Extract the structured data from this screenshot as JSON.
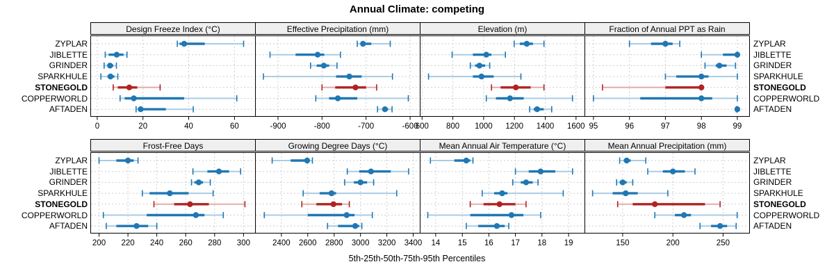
{
  "title": "Annual Climate: competing",
  "caption": "5th-25th-50th-75th-95th Percentiles",
  "sites": [
    "ZYPLAR",
    "JIBLETTE",
    "GRINDER",
    "SPARKHULE",
    "STONEGOLD",
    "COPPERWORLD",
    "AFTADEN"
  ],
  "highlight_site": "STONEGOLD",
  "percentile_labels": [
    "5th",
    "25th",
    "50th",
    "75th",
    "95th"
  ],
  "colors": {
    "series": "#1f77b4",
    "series_light": "#a9cce3",
    "highlight": "#b22222",
    "highlight_light": "#e2abab",
    "strip_bg": "#efefef",
    "grid": "#cdcdcd",
    "border": "#000000"
  },
  "chart_data": {
    "type": "dot-interval-lattice",
    "layout": {
      "rows": 2,
      "cols": 4
    },
    "percentiles": [
      5,
      25,
      50,
      75,
      95
    ],
    "panels": [
      {
        "title": "Design Freeze Index (°C)",
        "ticks": [
          0,
          20,
          40,
          60
        ],
        "xlim": [
          -3,
          69
        ],
        "series": {
          "ZYPLAR": [
            35,
            36,
            38,
            47,
            64
          ],
          "JIBLETTE": [
            3.5,
            5,
            8.5,
            11.5,
            13
          ],
          "GRINDER": [
            3,
            4.5,
            5.6,
            7,
            8.4
          ],
          "SPARKHULE": [
            1.6,
            4.5,
            5.8,
            7.5,
            9
          ],
          "STONEGOLD": [
            7,
            9,
            14,
            17.5,
            27.5
          ],
          "COPPERWORLD": [
            10,
            12,
            16,
            38,
            61
          ],
          "AFTADEN": [
            17,
            18,
            19,
            30,
            42
          ]
        }
      },
      {
        "title": "Effective Precipitation (mm)",
        "ticks": [
          -900,
          -800,
          -700,
          -600
        ],
        "xlim": [
          -952,
          -578
        ],
        "series": {
          "ZYPLAR": [
            -720,
            -712,
            -707,
            -688,
            -645
          ],
          "JIBLETTE": [
            -918,
            -860,
            -810,
            -795,
            -758
          ],
          "GRINDER": [
            -826,
            -812,
            -796,
            -784,
            -766
          ],
          "SPARKHULE": [
            -933,
            -768,
            -738,
            -710,
            -640
          ],
          "STONEGOLD": [
            -800,
            -770,
            -724,
            -700,
            -676
          ],
          "COPPERWORLD": [
            -814,
            -784,
            -764,
            -720,
            -604
          ],
          "AFTADEN": [
            -674,
            -663,
            -657,
            -650,
            -641
          ]
        }
      },
      {
        "title": "Elevation (m)",
        "ticks": [
          600,
          800,
          1000,
          1200,
          1400,
          1600
        ],
        "xlim": [
          585,
          1655
        ],
        "series": {
          "ZYPLAR": [
            1198,
            1235,
            1280,
            1320,
            1392
          ],
          "JIBLETTE": [
            795,
            930,
            1017,
            1050,
            1141
          ],
          "GRINDER": [
            913,
            945,
            973,
            1010,
            1039
          ],
          "SPARKHULE": [
            642,
            930,
            986,
            1065,
            1242
          ],
          "STONEGOLD": [
            1051,
            1110,
            1209,
            1305,
            1392
          ],
          "COPPERWORLD": [
            1017,
            1080,
            1171,
            1260,
            1577
          ],
          "AFTADEN": [
            1299,
            1325,
            1347,
            1390,
            1442
          ]
        }
      },
      {
        "title": "Fraction of Annual PPT as Rain",
        "ticks": [
          95,
          96,
          97,
          98,
          99
        ],
        "xlim": [
          94.75,
          99.33
        ],
        "series": {
          "ZYPLAR": [
            96,
            96.6,
            97,
            97.2,
            97.4
          ],
          "JIBLETTE": [
            98,
            98.6,
            99,
            99,
            99
          ],
          "GRINDER": [
            98.1,
            98.4,
            98.5,
            98.7,
            98.95
          ],
          "SPARKHULE": [
            97,
            97.3,
            98,
            98.2,
            99
          ],
          "STONEGOLD": [
            95.25,
            97,
            98,
            98,
            98
          ],
          "COPPERWORLD": [
            95,
            96.3,
            98,
            98.3,
            99
          ],
          "AFTADEN": [
            98.97,
            99,
            99,
            99,
            99
          ]
        }
      },
      {
        "title": "Frost-Free Days",
        "ticks": [
          200,
          220,
          240,
          260,
          280,
          300
        ],
        "xlim": [
          194,
          308
        ],
        "series": {
          "ZYPLAR": [
            200,
            212,
            220,
            224,
            227
          ],
          "JIBLETTE": [
            265,
            275,
            283,
            290,
            298
          ],
          "GRINDER": [
            264,
            266,
            269,
            272,
            277
          ],
          "SPARKHULE": [
            230,
            235,
            249,
            262,
            279
          ],
          "STONEGOLD": [
            238,
            252,
            263,
            276,
            301
          ],
          "COPPERWORLD": [
            203,
            233,
            267,
            273,
            286
          ],
          "AFTADEN": [
            205,
            212,
            226,
            234,
            240
          ]
        }
      },
      {
        "title": "Growing Degree Days (°C)",
        "ticks": [
          2400,
          2600,
          2800,
          3000,
          3200,
          3400
        ],
        "xlim": [
          2200,
          3450
        ],
        "series": {
          "ZYPLAR": [
            2330,
            2470,
            2595,
            2615,
            2635
          ],
          "JIBLETTE": [
            2900,
            2990,
            3080,
            3230,
            3365
          ],
          "GRINDER": [
            2880,
            2950,
            3000,
            3050,
            3100
          ],
          "SPARKHULE": [
            2565,
            2690,
            2780,
            2815,
            3275
          ],
          "STONEGOLD": [
            2555,
            2665,
            2795,
            2860,
            2915
          ],
          "COPPERWORLD": [
            2270,
            2600,
            2895,
            2955,
            3090
          ],
          "AFTADEN": [
            2750,
            2830,
            2960,
            2990,
            3010
          ]
        }
      },
      {
        "title": "Mean Annual Air Temperature (°C)",
        "ticks": [
          14,
          15,
          16,
          17,
          18,
          19
        ],
        "xlim": [
          13.4,
          19.6
        ],
        "series": {
          "ZYPLAR": [
            13.8,
            14.7,
            15.15,
            15.3,
            15.4
          ],
          "JIBLETTE": [
            17.0,
            17.5,
            17.95,
            18.5,
            19.15
          ],
          "GRINDER": [
            16.9,
            17.2,
            17.4,
            17.65,
            17.85
          ],
          "SPARKHULE": [
            15.75,
            16.2,
            16.5,
            16.7,
            18.8
          ],
          "STONEGOLD": [
            15.3,
            15.8,
            16.4,
            17.0,
            17.4
          ],
          "COPPERWORLD": [
            13.7,
            15.3,
            16.85,
            17.3,
            17.95
          ],
          "AFTADEN": [
            15.15,
            15.6,
            16.3,
            16.6,
            16.75
          ]
        }
      },
      {
        "title": "Mean Annual Precipitation (mm)",
        "ticks": [
          150,
          200,
          250
        ],
        "xlim": [
          112,
          276
        ],
        "series": {
          "ZYPLAR": [
            147,
            151,
            154,
            158,
            173
          ],
          "JIBLETTE": [
            175,
            190,
            200,
            212,
            222
          ],
          "GRINDER": [
            144,
            147,
            150,
            154,
            160
          ],
          "SPARKHULE": [
            120,
            140,
            153,
            165,
            195
          ],
          "STONEGOLD": [
            145,
            160,
            182,
            232,
            247
          ],
          "COPPERWORLD": [
            182,
            202,
            211,
            218,
            264
          ],
          "AFTADEN": [
            227,
            238,
            247,
            254,
            263
          ]
        }
      }
    ]
  }
}
